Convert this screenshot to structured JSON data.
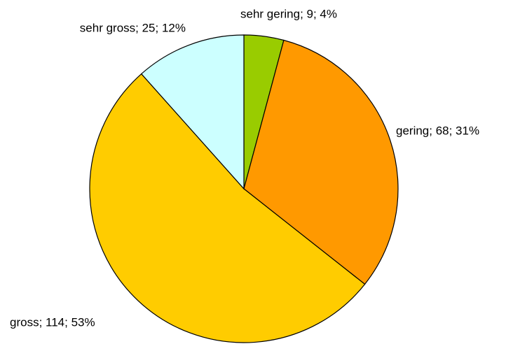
{
  "chart_data": {
    "type": "pie",
    "values": [
      9,
      68,
      114,
      25
    ],
    "value_labels": [
      "sehr gering; 9; 4%",
      "gering; 68; 31%",
      "gross; 114; 53%",
      "sehr gross; 25; 12%"
    ],
    "colors": [
      "#99cc00",
      "#ff9900",
      "#ffcc00",
      "#ccffff"
    ],
    "start_angle": 0,
    "direction": "clockwise"
  }
}
